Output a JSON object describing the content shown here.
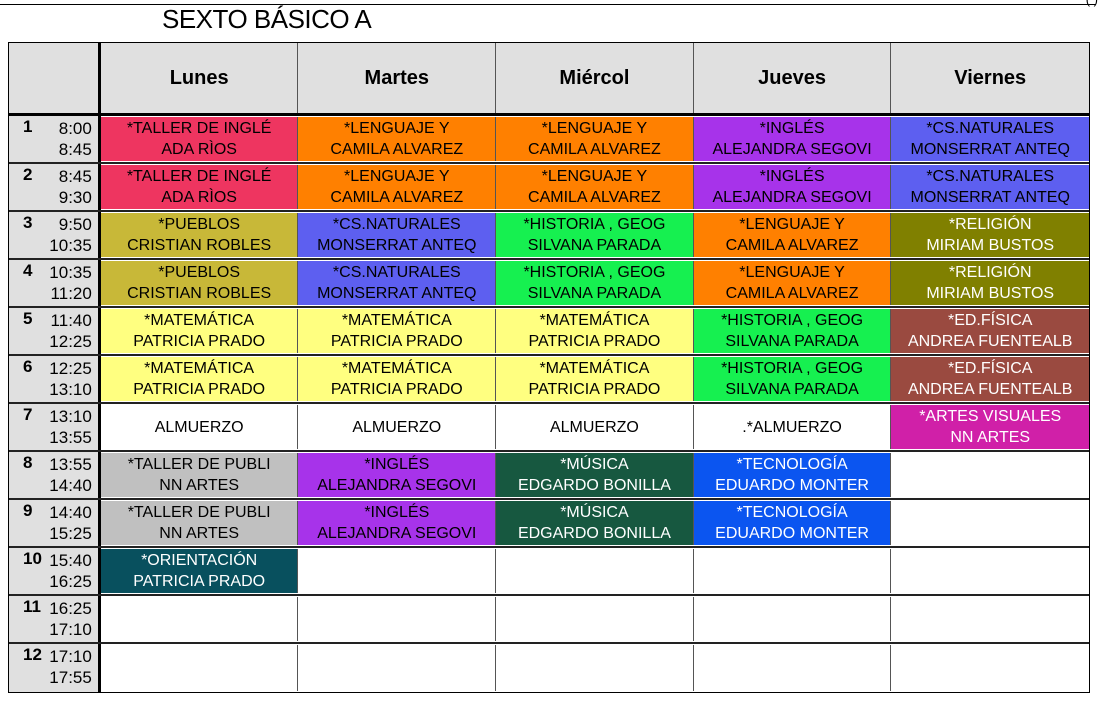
{
  "title": "SEXTO BÁSICO A",
  "corner": "( )",
  "days": [
    "Lunes",
    "Martes",
    "Miércol",
    "Jueves",
    "Viernes"
  ],
  "rows": [
    {
      "n": "1",
      "t1": "8:00",
      "t2": "8:45",
      "cells": [
        {
          "l1": "*TALLER DE INGLÉ",
          "l2": "ADA RÌOS",
          "bg": "#ee3560",
          "fg": "#000"
        },
        {
          "l1": "*LENGUAJE Y",
          "l2": "CAMILA ALVAREZ",
          "bg": "#ff8000",
          "fg": "#000"
        },
        {
          "l1": "*LENGUAJE Y",
          "l2": "CAMILA ALVAREZ",
          "bg": "#ff8000",
          "fg": "#000"
        },
        {
          "l1": "*INGLÉS",
          "l2": "ALEJANDRA SEGOVI",
          "bg": "#a733ea",
          "fg": "#000"
        },
        {
          "l1": "*CS.NATURALES",
          "l2": "MONSERRAT ANTEQ",
          "bg": "#5d5ff0",
          "fg": "#000"
        }
      ]
    },
    {
      "n": "2",
      "t1": "8:45",
      "t2": "9:30",
      "cells": [
        {
          "l1": "*TALLER DE INGLÉ",
          "l2": "ADA RÌOS",
          "bg": "#ee3560",
          "fg": "#000"
        },
        {
          "l1": "*LENGUAJE Y",
          "l2": "CAMILA ALVAREZ",
          "bg": "#ff8000",
          "fg": "#000"
        },
        {
          "l1": "*LENGUAJE Y",
          "l2": "CAMILA ALVAREZ",
          "bg": "#ff8000",
          "fg": "#000"
        },
        {
          "l1": "*INGLÉS",
          "l2": "ALEJANDRA SEGOVI",
          "bg": "#a733ea",
          "fg": "#000"
        },
        {
          "l1": "*CS.NATURALES",
          "l2": "MONSERRAT ANTEQ",
          "bg": "#5d5ff0",
          "fg": "#000"
        }
      ]
    },
    {
      "n": "3",
      "t1": "9:50",
      "t2": "10:35",
      "cells": [
        {
          "l1": "*PUEBLOS",
          "l2": "CRISTIAN ROBLES",
          "bg": "#c8b838",
          "fg": "#000"
        },
        {
          "l1": "*CS.NATURALES",
          "l2": "MONSERRAT ANTEQ",
          "bg": "#5d5ff0",
          "fg": "#000"
        },
        {
          "l1": "*HISTORIA , GEOG",
          "l2": "SILVANA PARADA",
          "bg": "#16f050",
          "fg": "#000"
        },
        {
          "l1": "*LENGUAJE Y",
          "l2": "CAMILA ALVAREZ",
          "bg": "#ff8000",
          "fg": "#000"
        },
        {
          "l1": "*RELIGIÓN",
          "l2": "MIRIAM BUSTOS",
          "bg": "#808000",
          "fg": "#fff"
        }
      ]
    },
    {
      "n": "4",
      "t1": "10:35",
      "t2": "11:20",
      "cells": [
        {
          "l1": "*PUEBLOS",
          "l2": "CRISTIAN ROBLES",
          "bg": "#c8b838",
          "fg": "#000"
        },
        {
          "l1": "*CS.NATURALES",
          "l2": "MONSERRAT ANTEQ",
          "bg": "#5d5ff0",
          "fg": "#000"
        },
        {
          "l1": "*HISTORIA , GEOG",
          "l2": "SILVANA PARADA",
          "bg": "#16f050",
          "fg": "#000"
        },
        {
          "l1": "*LENGUAJE Y",
          "l2": "CAMILA ALVAREZ",
          "bg": "#ff8000",
          "fg": "#000"
        },
        {
          "l1": "*RELIGIÓN",
          "l2": "MIRIAM BUSTOS",
          "bg": "#808000",
          "fg": "#fff"
        }
      ]
    },
    {
      "n": "5",
      "t1": "11:40",
      "t2": "12:25",
      "cells": [
        {
          "l1": "*MATEMÁTICA",
          "l2": "PATRICIA PRADO",
          "bg": "#ffff80",
          "fg": "#000"
        },
        {
          "l1": "*MATEMÁTICA",
          "l2": "PATRICIA PRADO",
          "bg": "#ffff80",
          "fg": "#000"
        },
        {
          "l1": "*MATEMÁTICA",
          "l2": "PATRICIA PRADO",
          "bg": "#ffff80",
          "fg": "#000"
        },
        {
          "l1": "*HISTORIA , GEOG",
          "l2": "SILVANA PARADA",
          "bg": "#16f050",
          "fg": "#000"
        },
        {
          "l1": "*ED.FÍSICA",
          "l2": "ANDREA FUENTEALB",
          "bg": "#9a4a40",
          "fg": "#fff"
        }
      ]
    },
    {
      "n": "6",
      "t1": "12:25",
      "t2": "13:10",
      "cells": [
        {
          "l1": "*MATEMÁTICA",
          "l2": "PATRICIA PRADO",
          "bg": "#ffff80",
          "fg": "#000"
        },
        {
          "l1": "*MATEMÁTICA",
          "l2": "PATRICIA PRADO",
          "bg": "#ffff80",
          "fg": "#000"
        },
        {
          "l1": "*MATEMÁTICA",
          "l2": "PATRICIA PRADO",
          "bg": "#ffff80",
          "fg": "#000"
        },
        {
          "l1": "*HISTORIA , GEOG",
          "l2": "SILVANA PARADA",
          "bg": "#16f050",
          "fg": "#000"
        },
        {
          "l1": "*ED.FÍSICA",
          "l2": "ANDREA FUENTEALB",
          "bg": "#9a4a40",
          "fg": "#fff"
        }
      ]
    },
    {
      "n": "7",
      "t1": "13:10",
      "t2": "13:55",
      "cells": [
        {
          "l1": "ALMUERZO",
          "l2": "",
          "bg": "#ffffff",
          "fg": "#000"
        },
        {
          "l1": "ALMUERZO",
          "l2": "",
          "bg": "#ffffff",
          "fg": "#000"
        },
        {
          "l1": "ALMUERZO",
          "l2": "",
          "bg": "#ffffff",
          "fg": "#000"
        },
        {
          "l1": ".*ALMUERZO",
          "l2": "",
          "bg": "#ffffff",
          "fg": "#000"
        },
        {
          "l1": "*ARTES VISUALES",
          "l2": "NN ARTES",
          "bg": "#d020a8",
          "fg": "#fff"
        }
      ]
    },
    {
      "n": "8",
      "t1": "13:55",
      "t2": "14:40",
      "cells": [
        {
          "l1": "*TALLER DE PUBLI",
          "l2": "NN ARTES",
          "bg": "#c0c0c0",
          "fg": "#000"
        },
        {
          "l1": "*INGLÉS",
          "l2": "ALEJANDRA SEGOVI",
          "bg": "#a733ea",
          "fg": "#000"
        },
        {
          "l1": "*MÚSICA",
          "l2": "EDGARDO BONILLA",
          "bg": "#175840",
          "fg": "#fff"
        },
        {
          "l1": "*TECNOLOGÍA",
          "l2": "EDUARDO MONTER",
          "bg": "#0b55f0",
          "fg": "#fff"
        },
        {
          "l1": "",
          "l2": "",
          "bg": "#ffffff",
          "fg": "#000"
        }
      ]
    },
    {
      "n": "9",
      "t1": "14:40",
      "t2": "15:25",
      "cells": [
        {
          "l1": "*TALLER DE PUBLI",
          "l2": "NN ARTES",
          "bg": "#c0c0c0",
          "fg": "#000"
        },
        {
          "l1": "*INGLÉS",
          "l2": "ALEJANDRA SEGOVI",
          "bg": "#a733ea",
          "fg": "#000"
        },
        {
          "l1": "*MÚSICA",
          "l2": "EDGARDO BONILLA",
          "bg": "#175840",
          "fg": "#fff"
        },
        {
          "l1": "*TECNOLOGÍA",
          "l2": "EDUARDO MONTER",
          "bg": "#0b55f0",
          "fg": "#fff"
        },
        {
          "l1": "",
          "l2": "",
          "bg": "#ffffff",
          "fg": "#000"
        }
      ]
    },
    {
      "n": "10",
      "t1": "15:40",
      "t2": "16:25",
      "cells": [
        {
          "l1": "*ORIENTACIÓN",
          "l2": "PATRICIA PRADO",
          "bg": "#08505e",
          "fg": "#fff"
        },
        {
          "l1": "",
          "l2": "",
          "bg": "#ffffff",
          "fg": "#000"
        },
        {
          "l1": "",
          "l2": "",
          "bg": "#ffffff",
          "fg": "#000"
        },
        {
          "l1": "",
          "l2": "",
          "bg": "#ffffff",
          "fg": "#000"
        },
        {
          "l1": "",
          "l2": "",
          "bg": "#ffffff",
          "fg": "#000"
        }
      ]
    },
    {
      "n": "11",
      "t1": "16:25",
      "t2": "17:10",
      "cells": [
        {
          "l1": "",
          "l2": "",
          "bg": "#ffffff",
          "fg": "#000"
        },
        {
          "l1": "",
          "l2": "",
          "bg": "#ffffff",
          "fg": "#000"
        },
        {
          "l1": "",
          "l2": "",
          "bg": "#ffffff",
          "fg": "#000"
        },
        {
          "l1": "",
          "l2": "",
          "bg": "#ffffff",
          "fg": "#000"
        },
        {
          "l1": "",
          "l2": "",
          "bg": "#ffffff",
          "fg": "#000"
        }
      ]
    },
    {
      "n": "12",
      "t1": "17:10",
      "t2": "17:55",
      "cells": [
        {
          "l1": "",
          "l2": "",
          "bg": "#ffffff",
          "fg": "#000"
        },
        {
          "l1": "",
          "l2": "",
          "bg": "#ffffff",
          "fg": "#000"
        },
        {
          "l1": "",
          "l2": "",
          "bg": "#ffffff",
          "fg": "#000"
        },
        {
          "l1": "",
          "l2": "",
          "bg": "#ffffff",
          "fg": "#000"
        },
        {
          "l1": "",
          "l2": "",
          "bg": "#ffffff",
          "fg": "#000"
        }
      ]
    }
  ]
}
